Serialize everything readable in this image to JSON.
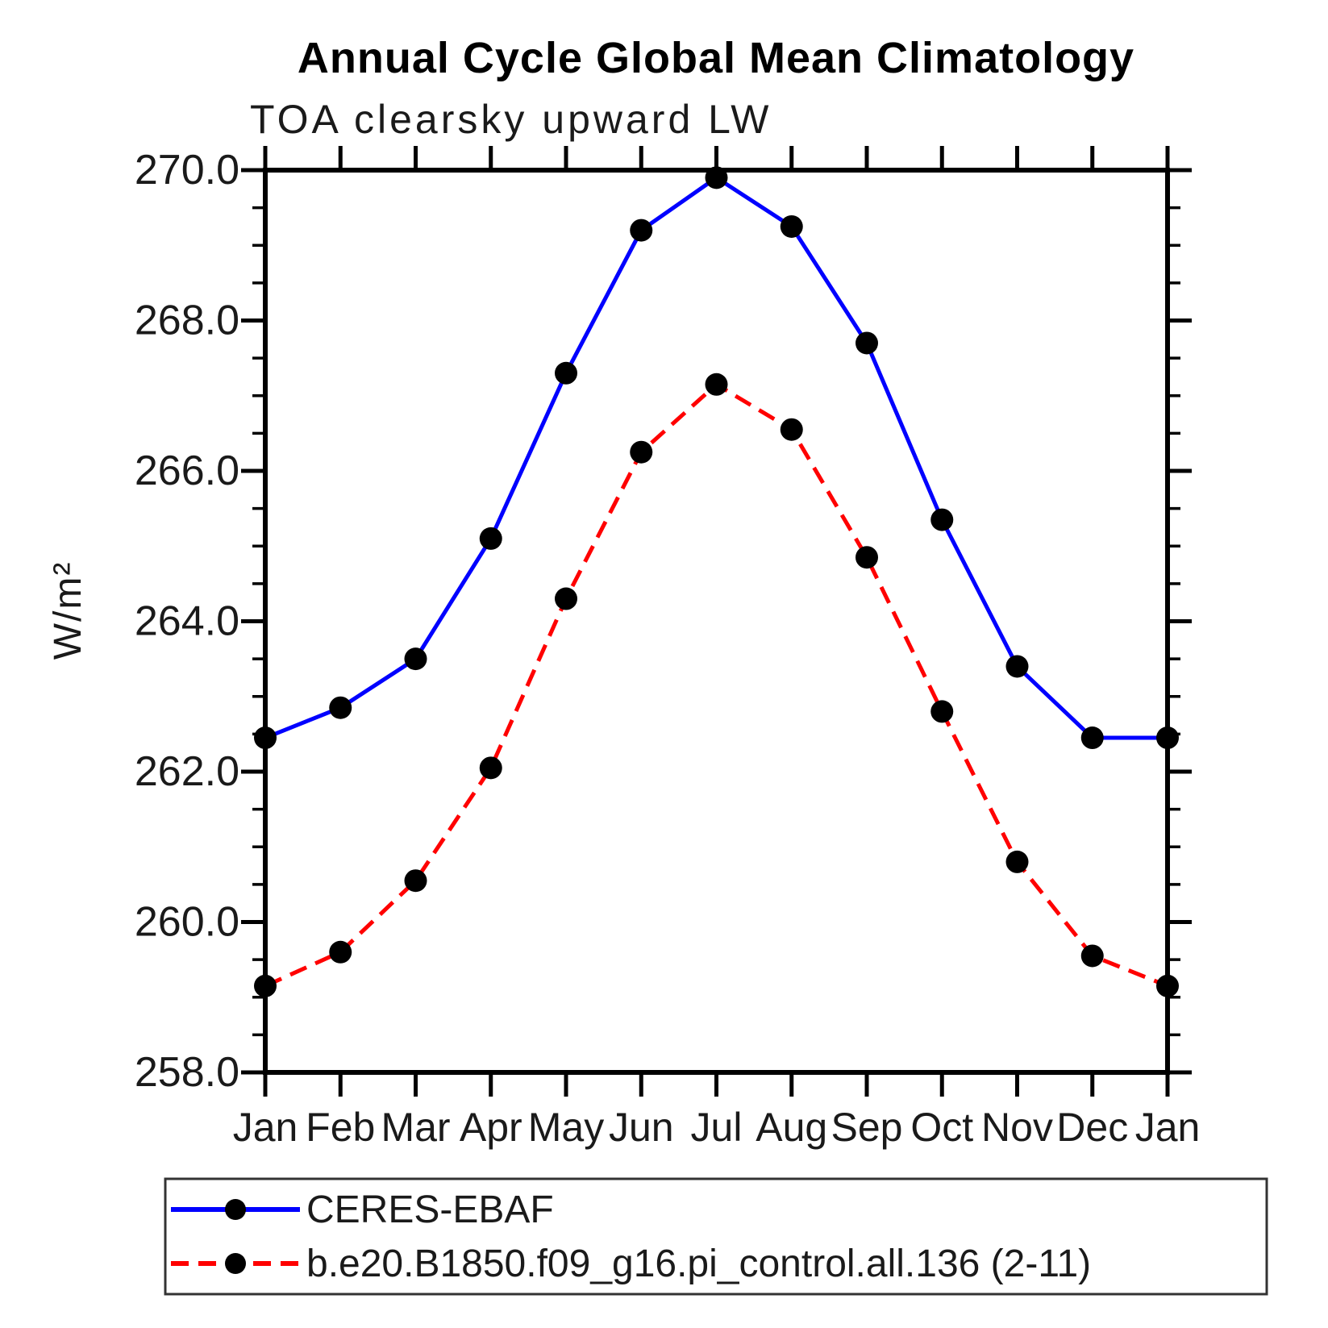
{
  "title": "Annual Cycle Global Mean Climatology",
  "subtitle": "TOA clearsky upward LW",
  "y_axis_title": "W/m²",
  "chart_data": {
    "type": "line",
    "x_categories": [
      "Jan",
      "Feb",
      "Mar",
      "Apr",
      "May",
      "Jun",
      "Jul",
      "Aug",
      "Sep",
      "Oct",
      "Nov",
      "Dec",
      "Jan"
    ],
    "xlabel": "",
    "ylabel": "W/m²",
    "ylim": [
      258.0,
      270.0
    ],
    "y_major_step": 2.0,
    "y_minor_step": 0.5,
    "y_tick_labels": [
      "258.0",
      "260.0",
      "262.0",
      "264.0",
      "266.0",
      "268.0",
      "270.0"
    ],
    "grid": false,
    "legend_position": "bottom",
    "series": [
      {
        "name": "CERES-EBAF",
        "line_style": "solid",
        "line_color": "#0000ff",
        "marker": "circle",
        "marker_color": "#000000",
        "values": [
          262.45,
          262.85,
          263.5,
          265.1,
          267.3,
          269.2,
          269.9,
          269.25,
          267.7,
          265.35,
          263.4,
          262.45,
          262.45
        ]
      },
      {
        "name": "b.e20.B1850.f09_g16.pi_control.all.136 (2-11)",
        "line_style": "dashed",
        "line_color": "#ff0000",
        "marker": "circle",
        "marker_color": "#000000",
        "values": [
          259.15,
          259.6,
          260.55,
          262.05,
          264.3,
          266.25,
          267.15,
          266.55,
          264.85,
          262.8,
          260.8,
          259.55,
          259.15
        ]
      }
    ]
  },
  "colors": {
    "axis": "#000000",
    "series_blue": "#0000ff",
    "series_red": "#ff0000",
    "marker": "#000000",
    "legend_border": "#333333",
    "background": "#ffffff"
  }
}
